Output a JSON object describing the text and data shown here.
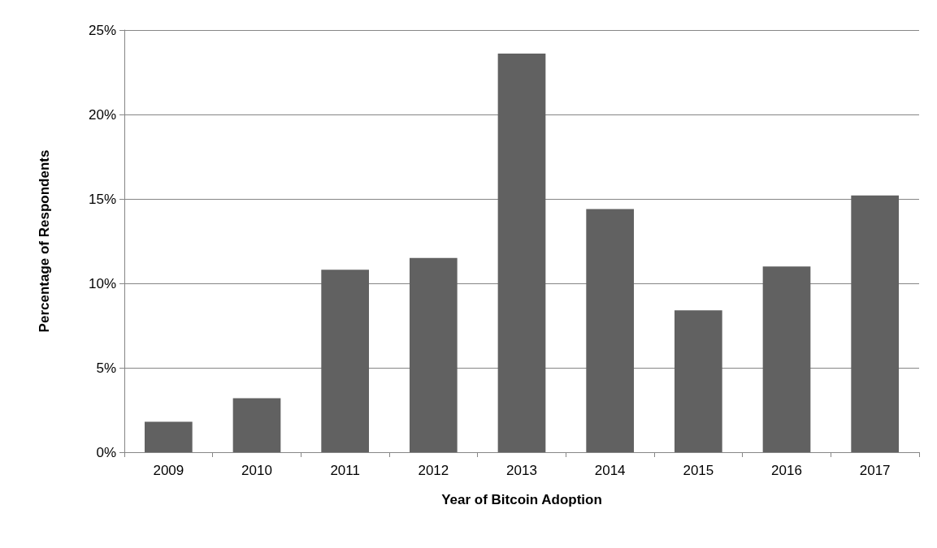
{
  "chart_data": {
    "type": "bar",
    "xlabel": "Year of Bitcoin Adoption",
    "ylabel": "Percentage of Respondents",
    "categories": [
      "2009",
      "2010",
      "2011",
      "2012",
      "2013",
      "2014",
      "2015",
      "2016",
      "2017"
    ],
    "values": [
      1.8,
      3.2,
      10.8,
      11.5,
      23.6,
      14.4,
      8.4,
      11.0,
      15.2
    ],
    "color": "#616161",
    "ylim": [
      0,
      25
    ],
    "yticks": [
      {
        "value": 0,
        "label": "0%"
      },
      {
        "value": 5,
        "label": "5%"
      },
      {
        "value": 10,
        "label": "10%"
      },
      {
        "value": 15,
        "label": "15%"
      },
      {
        "value": 20,
        "label": "20%"
      },
      {
        "value": 25,
        "label": "25%"
      }
    ],
    "grid": "y"
  }
}
